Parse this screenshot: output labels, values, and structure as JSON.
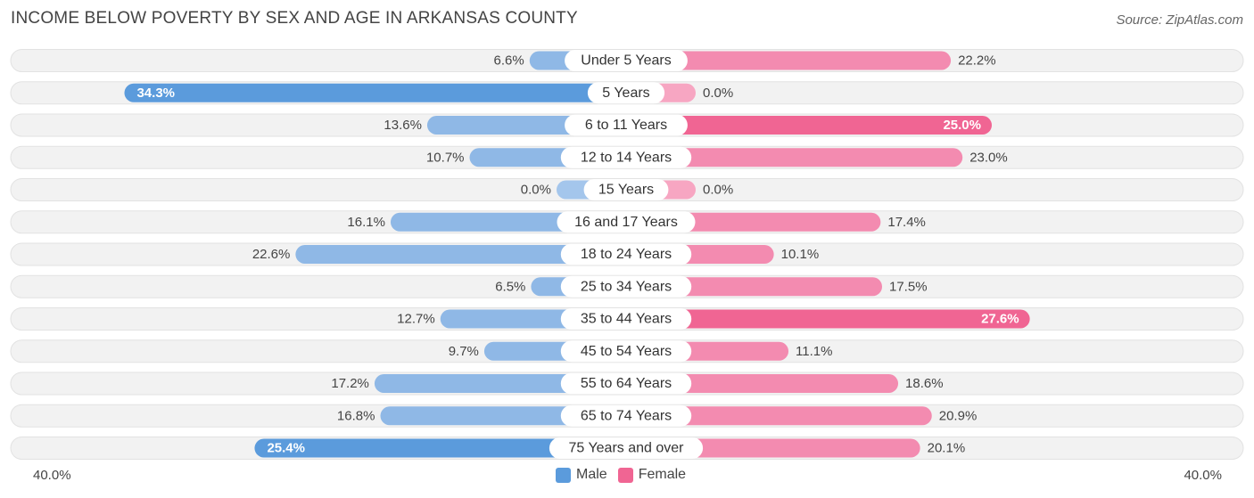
{
  "title": "INCOME BELOW POVERTY BY SEX AND AGE IN ARKANSAS COUNTY",
  "source": "Source: ZipAtlas.com",
  "axis": {
    "left_label": "40.0%",
    "right_label": "40.0%"
  },
  "legend": {
    "male": "Male",
    "female": "Female"
  },
  "colors": {
    "male": "#5b9bdc",
    "male_light": "#a4c6ec",
    "female": "#f06593",
    "female_light": "#f7a6c2",
    "track": "#f0f0f0"
  },
  "chart_data": {
    "type": "bar",
    "orientation": "horizontal-diverging",
    "categories": [
      "Under 5 Years",
      "5 Years",
      "6 to 11 Years",
      "12 to 14 Years",
      "15 Years",
      "16 and 17 Years",
      "18 to 24 Years",
      "25 to 34 Years",
      "35 to 44 Years",
      "45 to 54 Years",
      "55 to 64 Years",
      "65 to 74 Years",
      "75 Years and over"
    ],
    "series": [
      {
        "name": "Male",
        "values": [
          6.6,
          34.3,
          13.6,
          10.7,
          0.0,
          16.1,
          22.6,
          6.5,
          12.7,
          9.7,
          17.2,
          16.8,
          25.4
        ]
      },
      {
        "name": "Female",
        "values": [
          22.2,
          0.0,
          25.0,
          23.0,
          0.0,
          17.4,
          10.1,
          17.5,
          27.6,
          11.1,
          18.6,
          20.9,
          20.1
        ]
      }
    ],
    "value_labels": {
      "male": [
        "6.6%",
        "34.3%",
        "13.6%",
        "10.7%",
        "0.0%",
        "16.1%",
        "22.6%",
        "6.5%",
        "12.7%",
        "9.7%",
        "17.2%",
        "16.8%",
        "25.4%"
      ],
      "female": [
        "22.2%",
        "0.0%",
        "25.0%",
        "23.0%",
        "0.0%",
        "17.4%",
        "10.1%",
        "17.5%",
        "27.6%",
        "11.1%",
        "18.6%",
        "20.9%",
        "20.1%"
      ]
    },
    "xlim": [
      -40,
      40
    ],
    "legend_position": "bottom-center"
  }
}
